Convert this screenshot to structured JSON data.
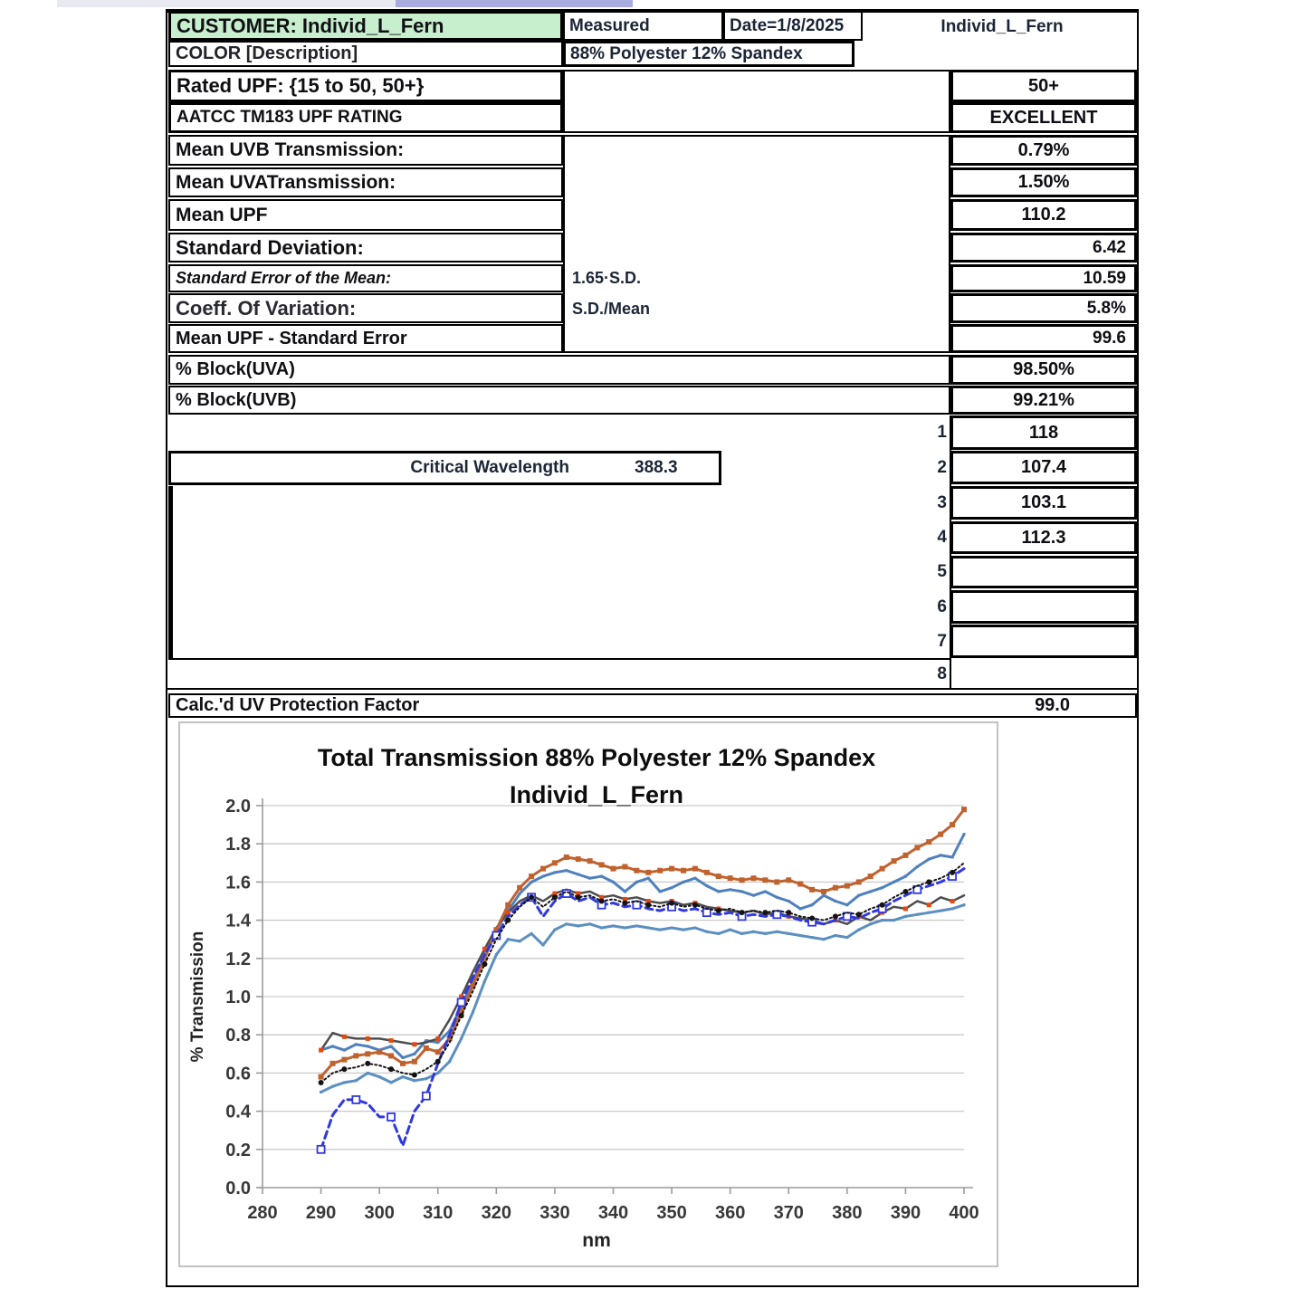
{
  "header": {
    "customer": "CUSTOMER: Individ_L_Fern",
    "measured": "Measured",
    "date": "Date=1/8/2025",
    "sample": "Individ_L_Fern",
    "color_label": "COLOR [Description]",
    "composition": "88% Polyester 12% Spandex",
    "customer_bg": "#C8EFCD"
  },
  "metrics": {
    "rated_upf": {
      "label": "Rated UPF:  {15 to 50, 50+}",
      "value": "50+"
    },
    "aatcc": {
      "label": "AATCC TM183 UPF RATING",
      "value": "EXCELLENT"
    },
    "mean_uvb": {
      "label": "Mean UVB Transmission:",
      "value": "0.79%"
    },
    "mean_uva": {
      "label": "Mean UVATransmission:",
      "value": "1.50%"
    },
    "mean_upf": {
      "label": "Mean UPF",
      "value": "110.2"
    },
    "std_dev": {
      "label": "Standard Deviation:",
      "value": "6.42"
    },
    "std_err": {
      "label": "Standard Error of the Mean:",
      "formula": "1.65·S.D.",
      "value": "10.59"
    },
    "coeff_var": {
      "label": "Coeff. Of Variation:",
      "formula": "S.D./Mean",
      "value": "5.8%"
    },
    "upf_minus_se": {
      "label": "Mean UPF - Standard Error",
      "value": "99.6"
    },
    "block_uva": {
      "label": "% Block(UVA)",
      "value": "98.50%"
    },
    "block_uvb": {
      "label": "% Block(UVB)",
      "value": "99.21%"
    }
  },
  "measurements": [
    {
      "index": "1",
      "value": "118"
    },
    {
      "index": "2",
      "value": "107.4"
    },
    {
      "index": "3",
      "value": "103.1"
    },
    {
      "index": "4",
      "value": "112.3"
    },
    {
      "index": "5",
      "value": ""
    },
    {
      "index": "6",
      "value": ""
    },
    {
      "index": "7",
      "value": ""
    },
    {
      "index": "8",
      "value": ""
    }
  ],
  "critical_wavelength": {
    "label": "Critical Wavelength",
    "value": "388.3"
  },
  "calc_upf": {
    "label": "Calc.'d UV Protection Factor",
    "value": "99.0"
  },
  "chart_data": {
    "type": "line",
    "title_line1": "Total Transmission  88% Polyester 12% Spandex",
    "title_line2": "Individ_L_Fern",
    "xlabel": "nm",
    "ylabel": "% Transmission",
    "xlim": [
      280,
      400
    ],
    "ylim": [
      0,
      2.0
    ],
    "xticks": [
      "280",
      "290",
      "300",
      "310",
      "320",
      "330",
      "340",
      "350",
      "360",
      "370",
      "380",
      "390",
      "400"
    ],
    "yticks": [
      "0.0",
      "0.2",
      "0.4",
      "0.6",
      "0.8",
      "1.0",
      "1.2",
      "1.4",
      "1.6",
      "1.8",
      "2.0"
    ],
    "grid": true,
    "legend": "none",
    "x_start": 290,
    "x_step": 2,
    "series": [
      {
        "name": "scan-steelblue-lower",
        "color": "#5B8FC0",
        "width": 3,
        "dash": "",
        "marker": "square",
        "marker_size": 3,
        "marker_color": "#5B8FC0",
        "marker_every": 1,
        "values": [
          0.5,
          0.53,
          0.55,
          0.56,
          0.6,
          0.58,
          0.55,
          0.58,
          0.56,
          0.57,
          0.6,
          0.66,
          0.78,
          0.92,
          1.08,
          1.22,
          1.3,
          1.29,
          1.33,
          1.27,
          1.35,
          1.38,
          1.37,
          1.38,
          1.36,
          1.37,
          1.36,
          1.37,
          1.36,
          1.35,
          1.36,
          1.35,
          1.36,
          1.34,
          1.33,
          1.35,
          1.33,
          1.34,
          1.33,
          1.34,
          1.33,
          1.32,
          1.31,
          1.3,
          1.32,
          1.31,
          1.35,
          1.38,
          1.4,
          1.4,
          1.42,
          1.43,
          1.44,
          1.45,
          1.46,
          1.48
        ]
      },
      {
        "name": "scan-steelblue-upper",
        "color": "#4F81BD",
        "width": 3,
        "dash": "",
        "marker": "square",
        "marker_size": 3,
        "marker_color": "#4F81BD",
        "marker_every": 1,
        "values": [
          0.72,
          0.74,
          0.72,
          0.75,
          0.74,
          0.72,
          0.74,
          0.68,
          0.7,
          0.77,
          0.76,
          0.82,
          0.95,
          1.08,
          1.22,
          1.35,
          1.45,
          1.54,
          1.6,
          1.63,
          1.65,
          1.66,
          1.64,
          1.62,
          1.63,
          1.6,
          1.55,
          1.6,
          1.62,
          1.55,
          1.57,
          1.6,
          1.62,
          1.58,
          1.55,
          1.56,
          1.55,
          1.53,
          1.55,
          1.52,
          1.5,
          1.46,
          1.48,
          1.53,
          1.5,
          1.48,
          1.53,
          1.55,
          1.57,
          1.6,
          1.63,
          1.68,
          1.72,
          1.74,
          1.73,
          1.85
        ]
      },
      {
        "name": "mean-gray-orange-markers",
        "color": "#4D4D4D",
        "width": 2.5,
        "dash": "",
        "marker": "square",
        "marker_size": 5,
        "marker_color": "#E8470E",
        "marker_every": 2,
        "values": [
          0.72,
          0.81,
          0.79,
          0.78,
          0.78,
          0.78,
          0.77,
          0.76,
          0.75,
          0.76,
          0.78,
          0.88,
          1.0,
          1.13,
          1.25,
          1.36,
          1.44,
          1.5,
          1.53,
          1.5,
          1.54,
          1.56,
          1.54,
          1.55,
          1.52,
          1.53,
          1.51,
          1.52,
          1.5,
          1.49,
          1.5,
          1.48,
          1.49,
          1.47,
          1.46,
          1.45,
          1.44,
          1.45,
          1.43,
          1.44,
          1.42,
          1.41,
          1.4,
          1.38,
          1.4,
          1.38,
          1.42,
          1.4,
          1.44,
          1.47,
          1.46,
          1.5,
          1.48,
          1.52,
          1.5,
          1.53
        ]
      },
      {
        "name": "scan-orange",
        "color": "#C0622E",
        "width": 3,
        "dash": "",
        "marker": "square",
        "marker_size": 6,
        "marker_color": "#C0622E",
        "marker_every": 1,
        "values": [
          0.58,
          0.65,
          0.67,
          0.69,
          0.7,
          0.71,
          0.69,
          0.65,
          0.66,
          0.73,
          0.71,
          0.78,
          0.92,
          1.06,
          1.2,
          1.35,
          1.48,
          1.57,
          1.63,
          1.67,
          1.7,
          1.73,
          1.72,
          1.71,
          1.69,
          1.67,
          1.68,
          1.66,
          1.65,
          1.66,
          1.67,
          1.66,
          1.67,
          1.65,
          1.63,
          1.62,
          1.61,
          1.62,
          1.61,
          1.6,
          1.61,
          1.59,
          1.56,
          1.55,
          1.57,
          1.58,
          1.6,
          1.63,
          1.67,
          1.71,
          1.74,
          1.78,
          1.81,
          1.85,
          1.9,
          1.98
        ]
      },
      {
        "name": "scan-royalblue-dashed",
        "color": "#3038DF",
        "width": 3,
        "dash": "8,5",
        "marker": "open-square",
        "marker_size": 8,
        "marker_color": "#3038DF",
        "marker_every": 3,
        "values": [
          0.2,
          0.38,
          0.46,
          0.46,
          0.44,
          0.37,
          0.37,
          0.22,
          0.4,
          0.48,
          0.65,
          0.8,
          0.97,
          1.1,
          1.22,
          1.32,
          1.42,
          1.48,
          1.52,
          1.42,
          1.5,
          1.54,
          1.5,
          1.52,
          1.48,
          1.49,
          1.47,
          1.48,
          1.46,
          1.45,
          1.47,
          1.45,
          1.46,
          1.44,
          1.43,
          1.44,
          1.42,
          1.43,
          1.42,
          1.43,
          1.42,
          1.4,
          1.39,
          1.38,
          1.4,
          1.42,
          1.41,
          1.44,
          1.46,
          1.5,
          1.53,
          1.56,
          1.58,
          1.6,
          1.63,
          1.67
        ]
      },
      {
        "name": "mean-black-dotted",
        "color": "#141414",
        "width": 2,
        "dash": "2,3",
        "marker": "circle",
        "marker_size": 5,
        "marker_color": "#141414",
        "marker_every": 2,
        "values": [
          0.55,
          0.6,
          0.62,
          0.63,
          0.65,
          0.64,
          0.62,
          0.6,
          0.59,
          0.62,
          0.66,
          0.76,
          0.9,
          1.03,
          1.17,
          1.3,
          1.4,
          1.47,
          1.52,
          1.47,
          1.52,
          1.55,
          1.52,
          1.53,
          1.5,
          1.51,
          1.49,
          1.5,
          1.48,
          1.47,
          1.49,
          1.47,
          1.48,
          1.46,
          1.45,
          1.46,
          1.44,
          1.45,
          1.44,
          1.45,
          1.44,
          1.42,
          1.41,
          1.4,
          1.42,
          1.44,
          1.43,
          1.46,
          1.48,
          1.52,
          1.55,
          1.58,
          1.6,
          1.62,
          1.65,
          1.7
        ]
      }
    ]
  }
}
